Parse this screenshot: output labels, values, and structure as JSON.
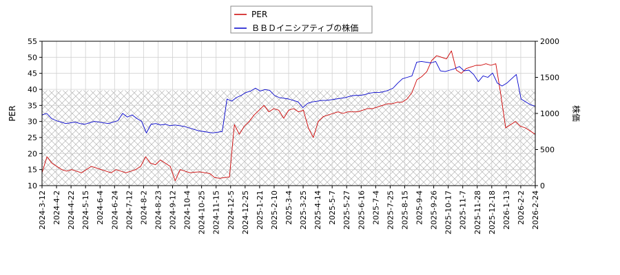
{
  "chart_data": {
    "type": "line",
    "x_ticks": [
      "2024-3-12",
      "2024-4-2",
      "2024-4-22",
      "2024-5-15",
      "2024-6-4",
      "2024-6-24",
      "2024-7-12",
      "2024-8-2",
      "2024-8-23",
      "2024-9-12",
      "2024-10-4",
      "2024-10-25",
      "2024-11-15",
      "2024-12-5",
      "2024-12-25",
      "2025-1-21",
      "2025-2-10",
      "2025-3-4",
      "2025-3-25",
      "2025-4-14",
      "2025-5-7",
      "2025-5-27",
      "2025-6-16",
      "2025-7-4",
      "2025-7-25",
      "2025-8-15",
      "2025-9-4",
      "2025-9-26",
      "2025-10-17",
      "2025-11-7",
      "2025-11-28",
      "2025-12-18",
      "2026-1-13",
      "2026-2-2",
      "2026-2-24"
    ],
    "y_left": {
      "label": "PER",
      "ticks": [
        10,
        15,
        20,
        25,
        30,
        35,
        40,
        45,
        50,
        55
      ],
      "lim": [
        10,
        55
      ]
    },
    "y_right": {
      "label": "株価",
      "ticks": [
        0,
        500,
        1000,
        1500,
        2000
      ],
      "lim": [
        0,
        2000
      ]
    },
    "hatch_band": {
      "axis": "right",
      "from": 0,
      "to": 1320
    },
    "grid": true,
    "legend_position": "top-center",
    "series": [
      {
        "name": "PER",
        "color": "#cc0000",
        "axis": "left",
        "values": [
          14,
          19,
          17,
          16,
          15,
          14.5,
          15,
          14.5,
          14,
          15,
          16,
          15.5,
          15,
          14.5,
          14,
          15,
          14.5,
          14,
          14.5,
          15,
          16,
          19,
          17,
          16.5,
          18,
          17,
          16,
          11.5,
          15,
          14.5,
          14,
          14.2,
          14.3,
          14,
          13.8,
          12.5,
          12.3,
          12.5,
          12.7,
          29,
          26,
          28.5,
          30,
          32,
          33.5,
          35,
          33,
          34,
          33.5,
          31,
          33.5,
          34,
          33,
          33.5,
          28,
          25,
          30,
          31.5,
          32,
          32.5,
          33,
          32.5,
          33,
          33,
          33,
          33.5,
          34,
          34,
          34.5,
          35,
          35.5,
          35.5,
          36,
          36,
          37,
          39,
          43,
          44,
          45.5,
          49,
          50.5,
          50,
          49.5,
          52,
          46,
          45,
          46.5,
          47,
          47.5,
          47.5,
          48,
          47.5,
          48,
          38.5,
          28,
          29,
          30,
          28.5,
          28,
          27,
          26
        ]
      },
      {
        "name": "ＢＢＤイニシアティブの株価",
        "color": "#0000cc",
        "axis": "right",
        "values": [
          980,
          1000,
          930,
          900,
          880,
          860,
          870,
          880,
          860,
          850,
          870,
          890,
          880,
          870,
          860,
          880,
          900,
          1000,
          950,
          980,
          930,
          890,
          730,
          850,
          860,
          840,
          850,
          830,
          840,
          830,
          820,
          800,
          780,
          760,
          750,
          740,
          730,
          740,
          750,
          1200,
          1170,
          1220,
          1250,
          1290,
          1310,
          1350,
          1310,
          1330,
          1320,
          1250,
          1220,
          1210,
          1200,
          1180,
          1160,
          1080,
          1140,
          1160,
          1170,
          1180,
          1180,
          1190,
          1200,
          1210,
          1220,
          1240,
          1250,
          1250,
          1260,
          1280,
          1290,
          1290,
          1300,
          1320,
          1350,
          1420,
          1480,
          1500,
          1520,
          1710,
          1720,
          1710,
          1700,
          1720,
          1590,
          1580,
          1600,
          1620,
          1650,
          1590,
          1600,
          1540,
          1440,
          1520,
          1500,
          1560,
          1420,
          1380,
          1420,
          1480,
          1540,
          1200,
          1160,
          1120,
          1100
        ]
      }
    ]
  }
}
